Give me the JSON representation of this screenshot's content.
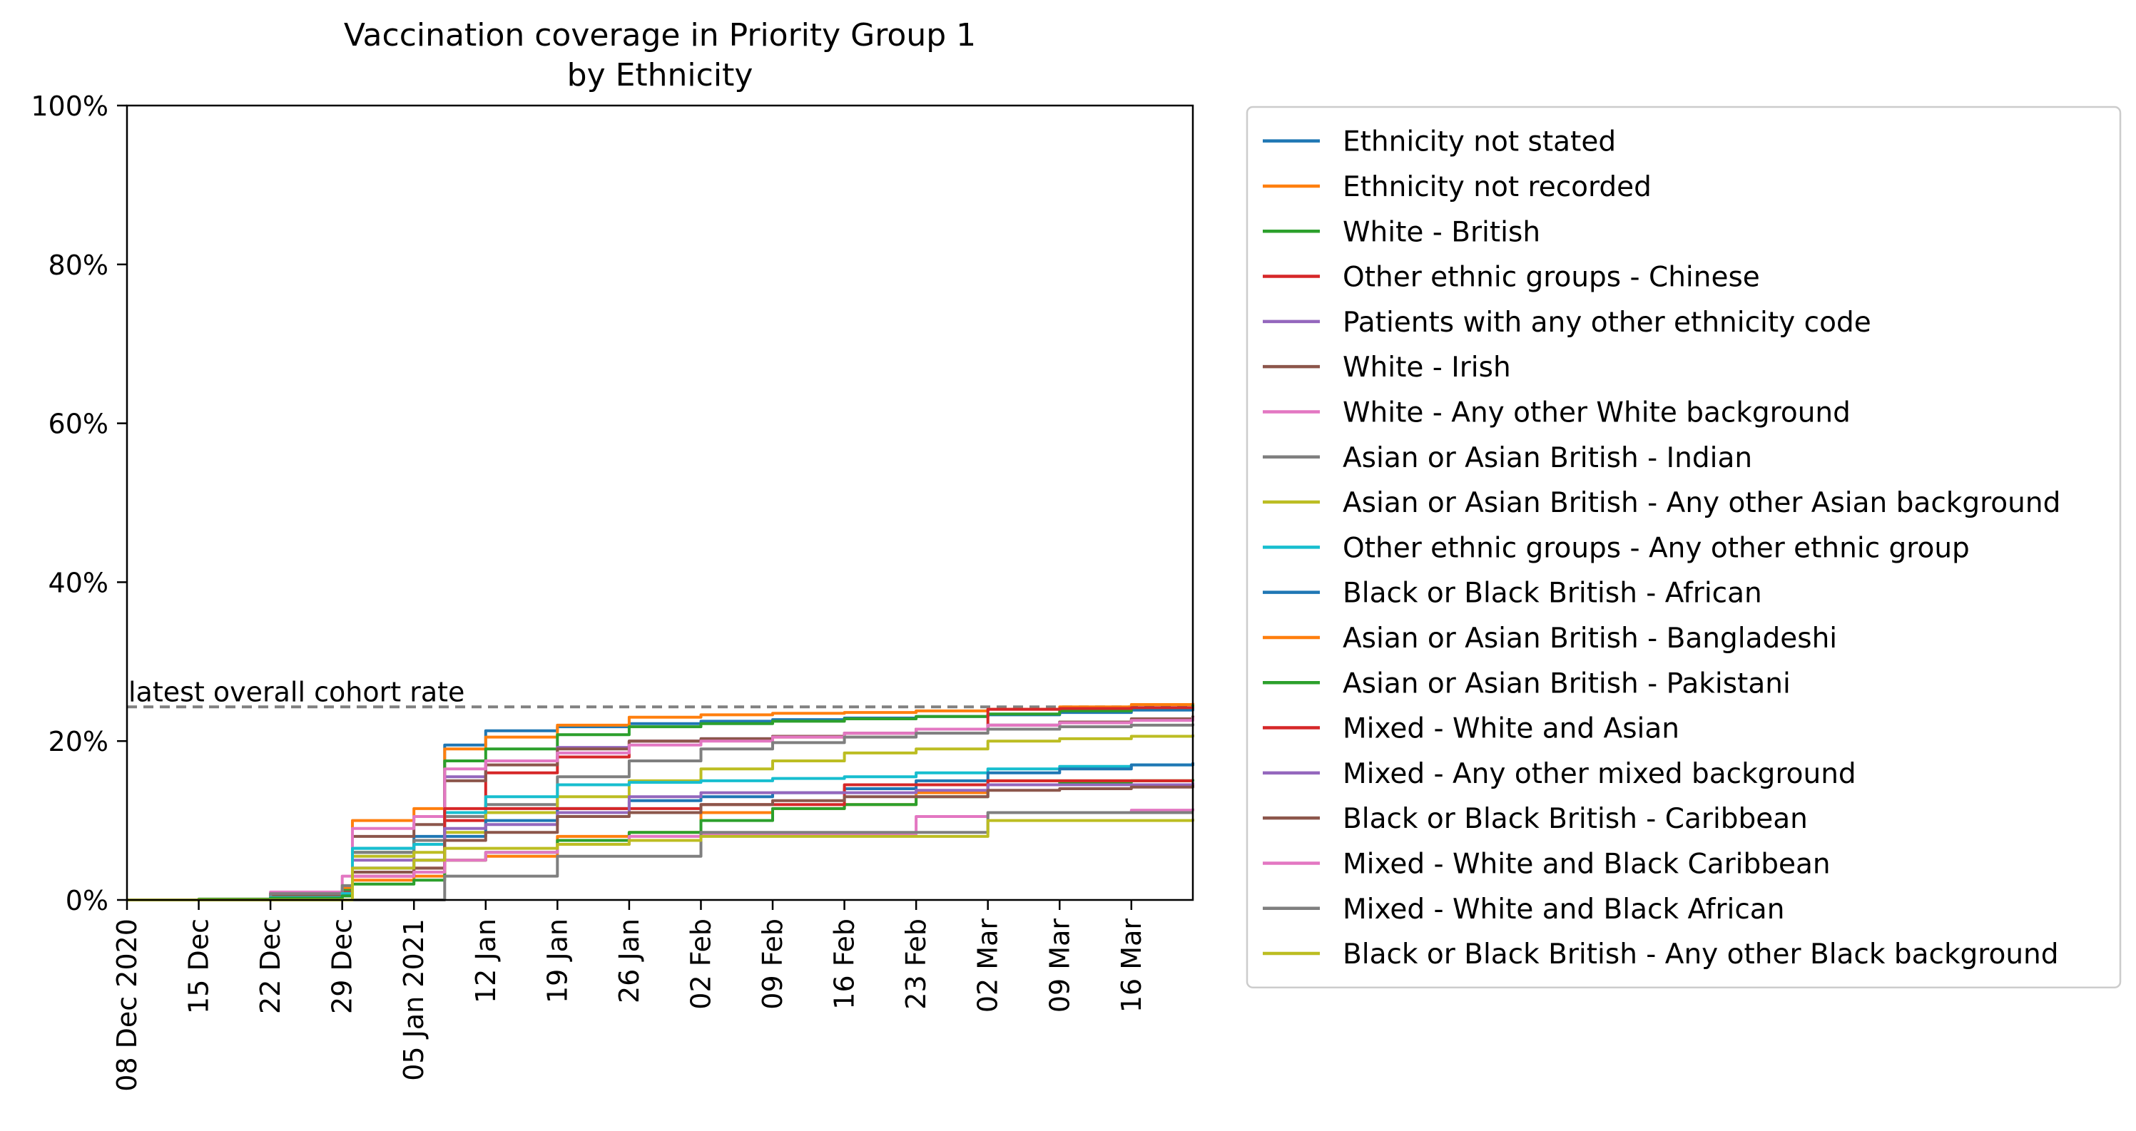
{
  "chart_data": {
    "type": "line",
    "title": "Vaccination coverage in Priority Group 1\nby Ethnicity",
    "xlabel": "",
    "ylabel": "",
    "ylim": [
      0,
      100
    ],
    "xlim": [
      "2020-12-08",
      "2021-03-22"
    ],
    "y_ticks": [
      0,
      20,
      40,
      60,
      80,
      100
    ],
    "y_tick_labels": [
      "0%",
      "20%",
      "40%",
      "60%",
      "80%",
      "100%"
    ],
    "x_ticks": [
      "2020-12-08",
      "2020-12-15",
      "2020-12-22",
      "2020-12-29",
      "2021-01-05",
      "2021-01-12",
      "2021-01-19",
      "2021-01-26",
      "2021-02-02",
      "2021-02-09",
      "2021-02-16",
      "2021-02-23",
      "2021-03-02",
      "2021-03-09",
      "2021-03-16"
    ],
    "x_tick_labels": [
      "08 Dec 2020",
      "15 Dec",
      "22 Dec",
      "29 Dec",
      "05 Jan 2021",
      "12 Jan",
      "19 Jan",
      "26 Jan",
      "02 Feb",
      "09 Feb",
      "16 Feb",
      "23 Feb",
      "02 Mar",
      "09 Mar",
      "16 Mar"
    ],
    "grid": false,
    "legend_position": "outside-right",
    "reference_line": {
      "value": 24.3,
      "label": "latest overall cohort rate",
      "color": "#808080",
      "style": "dashed"
    },
    "x": [
      "2020-12-08",
      "2020-12-15",
      "2020-12-22",
      "2020-12-29",
      "2020-12-30",
      "2021-01-05",
      "2021-01-08",
      "2021-01-12",
      "2021-01-19",
      "2021-01-26",
      "2021-02-02",
      "2021-02-09",
      "2021-02-16",
      "2021-02-23",
      "2021-03-02",
      "2021-03-09",
      "2021-03-16",
      "2021-03-22"
    ],
    "series": [
      {
        "name": "Ethnicity not stated",
        "color": "#1f77b4",
        "values": [
          0,
          0,
          0.5,
          1.0,
          6.5,
          8.0,
          19.5,
          21.3,
          21.8,
          22.2,
          22.5,
          22.7,
          22.9,
          23.1,
          23.3,
          23.6,
          23.9,
          24.2
        ]
      },
      {
        "name": "Ethnicity not recorded",
        "color": "#ff7f0e",
        "values": [
          0,
          0.1,
          0.8,
          1.5,
          10.0,
          11.5,
          19.0,
          20.5,
          22.0,
          23.0,
          23.3,
          23.5,
          23.6,
          23.8,
          24.0,
          24.3,
          24.6,
          24.8
        ]
      },
      {
        "name": "White - British",
        "color": "#2ca02c",
        "values": [
          0,
          0.1,
          0.6,
          1.2,
          6.0,
          7.5,
          17.5,
          19.0,
          20.8,
          21.8,
          22.2,
          22.5,
          22.8,
          23.1,
          23.4,
          23.8,
          24.2,
          24.6
        ]
      },
      {
        "name": "Other ethnic groups - Chinese",
        "color": "#d62728",
        "values": [
          0,
          0,
          0,
          0,
          3.0,
          3.5,
          10.0,
          16.0,
          18.0,
          20.0,
          20.2,
          20.5,
          21.0,
          21.5,
          24.0,
          24.1,
          24.2,
          24.3
        ]
      },
      {
        "name": "Patients with any other ethnicity code",
        "color": "#9467bd",
        "values": [
          0,
          0,
          0.3,
          0.8,
          5.0,
          7.0,
          15.5,
          17.5,
          19.2,
          20.0,
          20.3,
          20.6,
          21.0,
          21.5,
          22.0,
          22.4,
          22.7,
          23.0
        ]
      },
      {
        "name": "White - Irish",
        "color": "#8c564b",
        "values": [
          0,
          0,
          0.5,
          1.0,
          8.0,
          9.5,
          15.0,
          17.0,
          19.0,
          20.0,
          20.3,
          20.6,
          21.0,
          21.5,
          22.0,
          22.4,
          22.8,
          23.2
        ]
      },
      {
        "name": "White - Any other White background",
        "color": "#e377c2",
        "values": [
          0,
          0,
          1.0,
          3.0,
          9.0,
          10.5,
          16.5,
          17.5,
          18.5,
          19.5,
          20.0,
          20.5,
          21.0,
          21.5,
          22.0,
          22.3,
          22.6,
          23.0
        ]
      },
      {
        "name": "Asian or Asian British - Indian",
        "color": "#7f7f7f",
        "values": [
          0,
          0,
          0.8,
          1.8,
          6.0,
          7.5,
          10.5,
          12.0,
          15.5,
          17.5,
          19.0,
          19.8,
          20.5,
          21.0,
          21.5,
          21.8,
          22.0,
          22.2
        ]
      },
      {
        "name": "Asian or Asian British - Any other Asian background",
        "color": "#bcbd22",
        "values": [
          0,
          0,
          0.3,
          0.8,
          5.5,
          6.0,
          8.5,
          11.0,
          13.0,
          15.0,
          16.5,
          17.5,
          18.5,
          19.0,
          20.0,
          20.3,
          20.6,
          20.8
        ]
      },
      {
        "name": "Other ethnic groups - Any other ethnic group",
        "color": "#17becf",
        "values": [
          0,
          0,
          0.3,
          0.8,
          6.5,
          7.0,
          11.0,
          13.0,
          14.5,
          14.8,
          15.0,
          15.3,
          15.5,
          16.0,
          16.5,
          16.8,
          17.0,
          17.2
        ]
      },
      {
        "name": "Black or Black British - African",
        "color": "#1f77b4",
        "values": [
          0,
          0,
          0.2,
          0.5,
          4.0,
          5.0,
          8.0,
          10.0,
          11.5,
          12.5,
          13.0,
          13.5,
          14.0,
          15.0,
          16.0,
          16.5,
          17.0,
          17.3
        ]
      },
      {
        "name": "Asian or Asian British - Bangladeshi",
        "color": "#ff7f0e",
        "values": [
          0,
          0,
          0,
          0,
          2.5,
          3.0,
          5.0,
          5.5,
          8.0,
          8.5,
          11.0,
          11.5,
          12.0,
          13.5,
          15.0,
          15.0,
          15.0,
          15.0
        ]
      },
      {
        "name": "Asian or Asian British - Pakistani",
        "color": "#2ca02c",
        "values": [
          0,
          0,
          0.2,
          0.5,
          2.0,
          2.5,
          5.0,
          6.0,
          7.5,
          8.5,
          10.0,
          11.5,
          12.0,
          13.0,
          14.5,
          14.8,
          15.0,
          15.2
        ]
      },
      {
        "name": "Mixed - White and Asian",
        "color": "#d62728",
        "values": [
          0,
          0,
          0,
          0,
          3.0,
          4.0,
          11.5,
          11.5,
          11.5,
          11.5,
          12.0,
          12.0,
          14.5,
          14.5,
          15.0,
          15.0,
          15.0,
          15.0
        ]
      },
      {
        "name": "Mixed - Any other mixed background",
        "color": "#9467bd",
        "values": [
          0,
          0,
          0,
          0,
          4.0,
          5.0,
          9.0,
          9.5,
          11.0,
          13.0,
          13.5,
          13.5,
          13.5,
          13.8,
          14.5,
          14.5,
          14.5,
          14.8
        ]
      },
      {
        "name": "Black or Black British - Caribbean",
        "color": "#8c564b",
        "values": [
          0,
          0,
          0,
          0,
          3.5,
          4.0,
          7.5,
          8.5,
          10.5,
          11.0,
          12.0,
          12.5,
          13.0,
          13.0,
          13.8,
          14.0,
          14.2,
          14.5
        ]
      },
      {
        "name": "Mixed - White and Black Caribbean",
        "color": "#e377c2",
        "values": [
          0,
          0,
          0,
          0,
          3.0,
          3.5,
          5.0,
          6.0,
          7.0,
          8.0,
          8.3,
          8.3,
          8.3,
          10.5,
          11.0,
          11.0,
          11.3,
          11.5
        ]
      },
      {
        "name": "Mixed - White and Black African",
        "color": "#7f7f7f",
        "values": [
          0,
          0,
          0,
          0,
          0,
          0,
          3.0,
          3.0,
          5.5,
          5.5,
          8.5,
          8.5,
          8.5,
          8.5,
          11.0,
          11.0,
          11.0,
          11.0
        ]
      },
      {
        "name": "Black or Black British - Any other Black background",
        "color": "#bcbd22",
        "values": [
          0,
          0,
          0,
          0,
          4.0,
          5.0,
          6.5,
          6.5,
          7.0,
          7.5,
          8.0,
          8.0,
          8.0,
          8.0,
          10.0,
          10.0,
          10.0,
          10.2
        ]
      }
    ]
  }
}
